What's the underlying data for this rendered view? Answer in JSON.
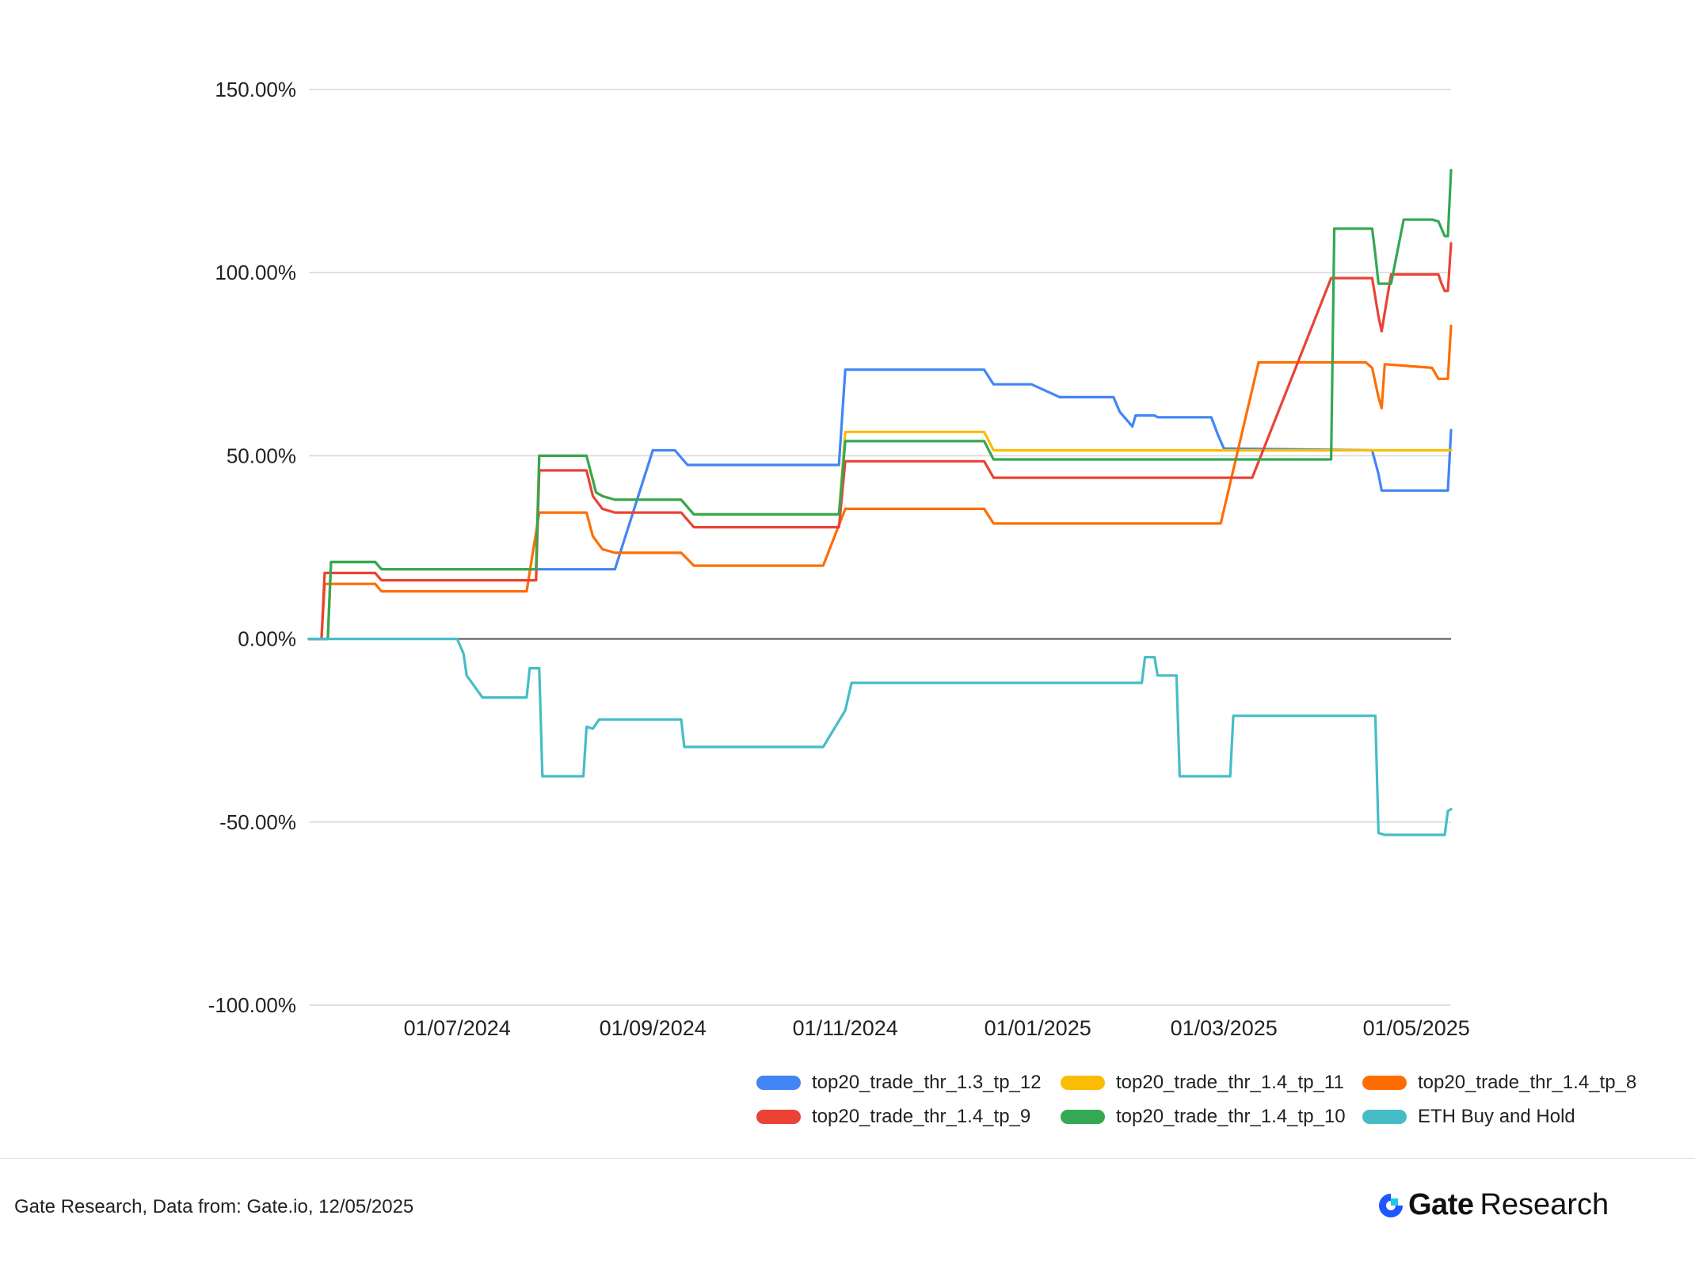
{
  "chart_data": {
    "type": "line",
    "y_ticks": [
      "150.00%",
      "100.00%",
      "50.00%",
      "0.00%",
      "-50.00%",
      "-100.00%"
    ],
    "x_ticks": [
      "01/07/2024",
      "01/09/2024",
      "01/11/2024",
      "01/01/2025",
      "01/03/2025",
      "01/05/2025"
    ],
    "ylim": [
      -100,
      150
    ],
    "xlim": [
      "2024-05-15",
      "2025-05-12"
    ],
    "grid": true,
    "legend_position": "bottom-right",
    "series": [
      {
        "name": "top20_trade_thr_1.3_tp_12",
        "color": "#4285f4",
        "points": [
          [
            "2024-05-15",
            0
          ],
          [
            "2024-05-21",
            0
          ],
          [
            "2024-05-22",
            21
          ],
          [
            "2024-06-05",
            21
          ],
          [
            "2024-06-07",
            19
          ],
          [
            "2024-07-26",
            19
          ],
          [
            "2024-08-20",
            19
          ],
          [
            "2024-09-01",
            51.5
          ],
          [
            "2024-09-08",
            51.5
          ],
          [
            "2024-09-12",
            47.5
          ],
          [
            "2024-10-30",
            47.5
          ],
          [
            "2024-11-01",
            73.5
          ],
          [
            "2024-12-15",
            73.5
          ],
          [
            "2024-12-18",
            69.5
          ],
          [
            "2024-12-30",
            69.5
          ],
          [
            "2025-01-08",
            66
          ],
          [
            "2025-01-25",
            66
          ],
          [
            "2025-01-27",
            62
          ],
          [
            "2025-01-29",
            60
          ],
          [
            "2025-01-31",
            58
          ],
          [
            "2025-02-01",
            61
          ],
          [
            "2025-02-07",
            61
          ],
          [
            "2025-02-08",
            60.5
          ],
          [
            "2025-02-25",
            60.5
          ],
          [
            "2025-02-27",
            56
          ],
          [
            "2025-03-01",
            52
          ],
          [
            "2025-04-17",
            51.5
          ],
          [
            "2025-04-19",
            45
          ],
          [
            "2025-04-20",
            40.5
          ],
          [
            "2025-05-11",
            40.5
          ],
          [
            "2025-05-12",
            57
          ]
        ]
      },
      {
        "name": "top20_trade_thr_1.4_tp_11",
        "color": "#fbbc04",
        "points": [
          [
            "2024-05-15",
            0
          ],
          [
            "2024-05-21",
            0
          ],
          [
            "2024-05-22",
            21
          ],
          [
            "2024-06-05",
            21
          ],
          [
            "2024-06-07",
            19
          ],
          [
            "2024-07-26",
            19
          ],
          [
            "2024-07-27",
            50
          ],
          [
            "2024-08-11",
            50
          ],
          [
            "2024-08-14",
            40
          ],
          [
            "2024-08-16",
            39
          ],
          [
            "2024-08-20",
            38
          ],
          [
            "2024-09-10",
            38
          ],
          [
            "2024-09-14",
            34
          ],
          [
            "2024-10-30",
            34
          ],
          [
            "2024-11-01",
            56.5
          ],
          [
            "2024-12-15",
            56.5
          ],
          [
            "2024-12-18",
            51.5
          ],
          [
            "2025-05-12",
            51.5
          ]
        ]
      },
      {
        "name": "top20_trade_thr_1.4_tp_8",
        "color": "#ff6d01",
        "points": [
          [
            "2024-05-15",
            0
          ],
          [
            "2024-05-19",
            0
          ],
          [
            "2024-05-20",
            15
          ],
          [
            "2024-06-05",
            15
          ],
          [
            "2024-06-07",
            13
          ],
          [
            "2024-07-23",
            13
          ],
          [
            "2024-07-27",
            34.5
          ],
          [
            "2024-08-11",
            34.5
          ],
          [
            "2024-08-13",
            28
          ],
          [
            "2024-08-16",
            24.5
          ],
          [
            "2024-08-20",
            23.5
          ],
          [
            "2024-09-10",
            23.5
          ],
          [
            "2024-09-14",
            20
          ],
          [
            "2024-10-25",
            20
          ],
          [
            "2024-11-01",
            35.5
          ],
          [
            "2024-12-15",
            35.5
          ],
          [
            "2024-12-18",
            31.5
          ],
          [
            "2025-02-28",
            31.5
          ],
          [
            "2025-03-12",
            75.5
          ],
          [
            "2025-04-15",
            75.5
          ],
          [
            "2025-04-17",
            74
          ],
          [
            "2025-04-19",
            66
          ],
          [
            "2025-04-20",
            63
          ],
          [
            "2025-04-21",
            75
          ],
          [
            "2025-05-06",
            74
          ],
          [
            "2025-05-08",
            71
          ],
          [
            "2025-05-11",
            71
          ],
          [
            "2025-05-12",
            85.5
          ]
        ]
      },
      {
        "name": "top20_trade_thr_1.4_tp_9",
        "color": "#ea4335",
        "points": [
          [
            "2024-05-15",
            0
          ],
          [
            "2024-05-19",
            0
          ],
          [
            "2024-05-20",
            18
          ],
          [
            "2024-06-05",
            18
          ],
          [
            "2024-06-07",
            16
          ],
          [
            "2024-07-26",
            16
          ],
          [
            "2024-07-27",
            46
          ],
          [
            "2024-08-11",
            46
          ],
          [
            "2024-08-13",
            39
          ],
          [
            "2024-08-16",
            35.5
          ],
          [
            "2024-08-20",
            34.5
          ],
          [
            "2024-09-10",
            34.5
          ],
          [
            "2024-09-14",
            30.5
          ],
          [
            "2024-10-30",
            30.5
          ],
          [
            "2024-11-01",
            48.5
          ],
          [
            "2024-12-15",
            48.5
          ],
          [
            "2024-12-18",
            44
          ],
          [
            "2025-03-10",
            44
          ],
          [
            "2025-04-04",
            98.5
          ],
          [
            "2025-04-17",
            98.5
          ],
          [
            "2025-04-19",
            88
          ],
          [
            "2025-04-20",
            84
          ],
          [
            "2025-04-23",
            99.5
          ],
          [
            "2025-05-08",
            99.5
          ],
          [
            "2025-05-09",
            97
          ],
          [
            "2025-05-10",
            95
          ],
          [
            "2025-05-11",
            95
          ],
          [
            "2025-05-12",
            108
          ]
        ]
      },
      {
        "name": "top20_trade_thr_1.4_tp_10",
        "color": "#34a853",
        "points": [
          [
            "2024-05-15",
            0
          ],
          [
            "2024-05-21",
            0
          ],
          [
            "2024-05-22",
            21
          ],
          [
            "2024-06-05",
            21
          ],
          [
            "2024-06-07",
            19
          ],
          [
            "2024-07-26",
            19
          ],
          [
            "2024-07-27",
            50
          ],
          [
            "2024-08-11",
            50
          ],
          [
            "2024-08-14",
            40
          ],
          [
            "2024-08-16",
            39
          ],
          [
            "2024-08-20",
            38
          ],
          [
            "2024-09-10",
            38
          ],
          [
            "2024-09-14",
            34
          ],
          [
            "2024-10-30",
            34
          ],
          [
            "2024-11-01",
            54
          ],
          [
            "2024-12-15",
            54
          ],
          [
            "2024-12-18",
            49
          ],
          [
            "2025-04-04",
            49
          ],
          [
            "2025-04-05",
            112
          ],
          [
            "2025-04-17",
            112
          ],
          [
            "2025-04-18",
            105
          ],
          [
            "2025-04-19",
            97
          ],
          [
            "2025-04-23",
            97
          ],
          [
            "2025-04-27",
            114.5
          ],
          [
            "2025-05-06",
            114.5
          ],
          [
            "2025-05-08",
            114
          ],
          [
            "2025-05-10",
            110
          ],
          [
            "2025-05-11",
            110
          ],
          [
            "2025-05-12",
            128
          ]
        ]
      },
      {
        "name": "ETH Buy and Hold",
        "color": "#46bdc6",
        "points": [
          [
            "2024-05-15",
            0
          ],
          [
            "2024-07-01",
            0
          ],
          [
            "2024-07-03",
            -4
          ],
          [
            "2024-07-04",
            -10
          ],
          [
            "2024-07-09",
            -16
          ],
          [
            "2024-07-23",
            -16
          ],
          [
            "2024-07-24",
            -8
          ],
          [
            "2024-07-27",
            -8
          ],
          [
            "2024-07-28",
            -37.5
          ],
          [
            "2024-08-10",
            -37.5
          ],
          [
            "2024-08-11",
            -24
          ],
          [
            "2024-08-13",
            -24.5
          ],
          [
            "2024-08-15",
            -22
          ],
          [
            "2024-09-10",
            -22
          ],
          [
            "2024-09-11",
            -29.5
          ],
          [
            "2024-10-25",
            -29.5
          ],
          [
            "2024-11-01",
            -19.5
          ],
          [
            "2024-11-03",
            -12
          ],
          [
            "2025-02-03",
            -12
          ],
          [
            "2025-02-04",
            -5
          ],
          [
            "2025-02-07",
            -5
          ],
          [
            "2025-02-08",
            -10
          ],
          [
            "2025-02-14",
            -10
          ],
          [
            "2025-02-15",
            -37.5
          ],
          [
            "2025-03-03",
            -37.5
          ],
          [
            "2025-03-04",
            -21
          ],
          [
            "2025-04-18",
            -21
          ],
          [
            "2025-04-19",
            -53
          ],
          [
            "2025-04-21",
            -53.5
          ],
          [
            "2025-05-10",
            -53.5
          ],
          [
            "2025-05-11",
            -47
          ],
          [
            "2025-05-12",
            -46.5
          ]
        ]
      }
    ]
  },
  "footer": {
    "source": "Gate Research, Data from: Gate.io, 12/05/2025",
    "brand_gate": "Gate",
    "brand_research": "Research"
  },
  "colors": {
    "brand_blue": "#1e56ff",
    "brand_cyan": "#1ec8f0"
  }
}
